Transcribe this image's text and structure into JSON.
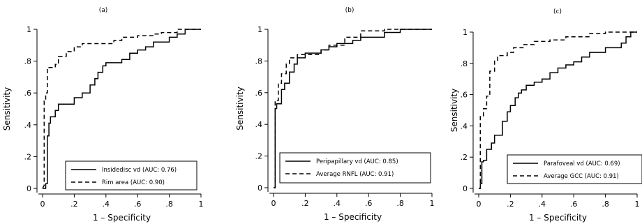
{
  "chart_data": [
    {
      "type": "line",
      "panel_label": "(a)",
      "xlabel": "1 – Specificity",
      "ylabel": "Sensitivity",
      "xlim": [
        0,
        1
      ],
      "ylim": [
        0,
        1
      ],
      "xticks": [
        "0",
        ".2",
        ".4",
        ".6",
        ".8",
        "1"
      ],
      "yticks": [
        "0",
        ".2",
        ".4",
        ".6",
        ".8",
        "1"
      ],
      "legend": "bottom-right",
      "grid": false,
      "series": [
        {
          "name": "Insidedisc vd (AUC: 0.76)",
          "style": "solid",
          "x": [
            0,
            0.02,
            0.02,
            0.03,
            0.03,
            0.04,
            0.04,
            0.05,
            0.05,
            0.08,
            0.08,
            0.1,
            0.1,
            0.12,
            0.12,
            0.2,
            0.2,
            0.25,
            0.25,
            0.3,
            0.3,
            0.33,
            0.33,
            0.35,
            0.35,
            0.38,
            0.38,
            0.4,
            0.4,
            0.5,
            0.5,
            0.55,
            0.55,
            0.6,
            0.6,
            0.65,
            0.65,
            0.7,
            0.7,
            0.8,
            0.8,
            0.85,
            0.85,
            0.9,
            0.9,
            1
          ],
          "y": [
            0,
            0,
            0.03,
            0.03,
            0.33,
            0.33,
            0.41,
            0.41,
            0.45,
            0.45,
            0.49,
            0.49,
            0.53,
            0.53,
            0.53,
            0.53,
            0.57,
            0.57,
            0.6,
            0.6,
            0.65,
            0.65,
            0.69,
            0.69,
            0.73,
            0.73,
            0.77,
            0.77,
            0.79,
            0.79,
            0.81,
            0.81,
            0.85,
            0.85,
            0.87,
            0.87,
            0.89,
            0.89,
            0.92,
            0.92,
            0.95,
            0.95,
            0.97,
            0.97,
            1,
            1
          ]
        },
        {
          "name": "Rim area (AUC: 0.90)",
          "style": "dashed",
          "x": [
            0,
            0.01,
            0.01,
            0.02,
            0.02,
            0.03,
            0.03,
            0.08,
            0.08,
            0.1,
            0.1,
            0.15,
            0.15,
            0.2,
            0.2,
            0.25,
            0.25,
            0.45,
            0.45,
            0.5,
            0.5,
            0.6,
            0.6,
            0.7,
            0.7,
            0.75,
            0.75,
            0.85,
            0.85,
            1
          ],
          "y": [
            0,
            0.02,
            0.55,
            0.55,
            0.6,
            0.6,
            0.76,
            0.76,
            0.78,
            0.78,
            0.83,
            0.83,
            0.86,
            0.86,
            0.89,
            0.89,
            0.91,
            0.91,
            0.93,
            0.93,
            0.95,
            0.95,
            0.96,
            0.96,
            0.97,
            0.97,
            0.98,
            0.98,
            1,
            1
          ]
        }
      ]
    },
    {
      "type": "line",
      "panel_label": "(b)",
      "xlabel": "1 – Specificity",
      "ylabel": "Sensitivity",
      "xlim": [
        0,
        1
      ],
      "ylim": [
        0,
        1
      ],
      "xticks": [
        "0",
        ".2",
        ".4",
        ".6",
        ".8",
        "1"
      ],
      "yticks": [
        "0",
        ".2",
        ".4",
        ".6",
        ".8",
        "1"
      ],
      "legend": "bottom-right",
      "grid": false,
      "series": [
        {
          "name": "Peripapillary vd (AUC: 0.85)",
          "style": "solid",
          "x": [
            0,
            0.01,
            0.01,
            0.02,
            0.02,
            0.05,
            0.05,
            0.07,
            0.07,
            0.1,
            0.1,
            0.13,
            0.13,
            0.15,
            0.15,
            0.2,
            0.2,
            0.3,
            0.3,
            0.35,
            0.35,
            0.4,
            0.4,
            0.5,
            0.5,
            0.55,
            0.55,
            0.7,
            0.7,
            0.8,
            0.8,
            1
          ],
          "y": [
            0,
            0,
            0.5,
            0.5,
            0.53,
            0.53,
            0.62,
            0.62,
            0.66,
            0.66,
            0.73,
            0.73,
            0.78,
            0.78,
            0.82,
            0.82,
            0.85,
            0.85,
            0.87,
            0.87,
            0.89,
            0.89,
            0.91,
            0.91,
            0.93,
            0.93,
            0.95,
            0.95,
            0.98,
            0.98,
            1,
            1
          ]
        },
        {
          "name": "Average RNFL (AUC: 0.91)",
          "style": "dashed",
          "x": [
            0,
            0.01,
            0.01,
            0.03,
            0.03,
            0.05,
            0.05,
            0.08,
            0.08,
            0.1,
            0.1,
            0.15,
            0.15,
            0.3,
            0.3,
            0.35,
            0.35,
            0.45,
            0.45,
            0.55,
            0.55,
            0.7,
            0.7,
            1
          ],
          "y": [
            0,
            0,
            0.55,
            0.55,
            0.66,
            0.66,
            0.72,
            0.72,
            0.78,
            0.78,
            0.82,
            0.82,
            0.84,
            0.84,
            0.87,
            0.87,
            0.9,
            0.9,
            0.95,
            0.95,
            0.99,
            0.99,
            1,
            1
          ]
        }
      ]
    },
    {
      "type": "line",
      "panel_label": "(c)",
      "xlabel": "1 – Specificity",
      "ylabel": "Sensitivity",
      "xlim": [
        0,
        1
      ],
      "ylim": [
        0,
        1
      ],
      "xticks": [
        "0",
        ".2",
        ".4",
        ".6",
        ".8",
        "1"
      ],
      "yticks": [
        "0",
        ".2",
        ".4",
        ".6",
        ".8",
        "1"
      ],
      "legend": "bottom-right",
      "grid": false,
      "series": [
        {
          "name": "Parafoveal vd (AUC: 0.69)",
          "style": "solid",
          "x": [
            0,
            0.01,
            0.01,
            0.02,
            0.02,
            0.03,
            0.03,
            0.05,
            0.05,
            0.08,
            0.08,
            0.1,
            0.1,
            0.15,
            0.15,
            0.18,
            0.18,
            0.2,
            0.2,
            0.23,
            0.23,
            0.25,
            0.25,
            0.27,
            0.27,
            0.3,
            0.3,
            0.35,
            0.35,
            0.4,
            0.4,
            0.45,
            0.45,
            0.5,
            0.5,
            0.55,
            0.55,
            0.6,
            0.6,
            0.65,
            0.65,
            0.7,
            0.7,
            0.8,
            0.8,
            0.9,
            0.9,
            0.93,
            0.93,
            0.96,
            0.96,
            1
          ],
          "y": [
            0,
            0,
            0.03,
            0.03,
            0.17,
            0.17,
            0.18,
            0.18,
            0.25,
            0.25,
            0.29,
            0.29,
            0.34,
            0.34,
            0.43,
            0.43,
            0.49,
            0.49,
            0.53,
            0.53,
            0.58,
            0.58,
            0.61,
            0.61,
            0.63,
            0.63,
            0.66,
            0.66,
            0.68,
            0.68,
            0.7,
            0.7,
            0.74,
            0.74,
            0.77,
            0.77,
            0.79,
            0.79,
            0.81,
            0.81,
            0.84,
            0.84,
            0.87,
            0.87,
            0.9,
            0.9,
            0.93,
            0.93,
            0.97,
            0.97,
            1,
            1
          ]
        },
        {
          "name": "Average GCC (AUC: 0.91)",
          "style": "dashed",
          "x": [
            0,
            0.01,
            0.01,
            0.03,
            0.03,
            0.05,
            0.05,
            0.07,
            0.07,
            0.1,
            0.1,
            0.12,
            0.12,
            0.18,
            0.18,
            0.22,
            0.22,
            0.28,
            0.28,
            0.35,
            0.35,
            0.45,
            0.45,
            0.55,
            0.55,
            0.7,
            0.7,
            0.8,
            0.8,
            1
          ],
          "y": [
            0,
            0,
            0.46,
            0.46,
            0.51,
            0.51,
            0.59,
            0.59,
            0.75,
            0.75,
            0.82,
            0.82,
            0.85,
            0.85,
            0.87,
            0.87,
            0.9,
            0.9,
            0.92,
            0.92,
            0.94,
            0.94,
            0.95,
            0.95,
            0.97,
            0.97,
            0.99,
            0.99,
            1,
            1
          ]
        }
      ]
    }
  ]
}
